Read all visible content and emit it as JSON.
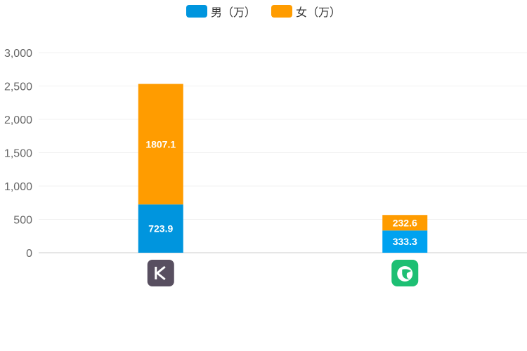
{
  "chart_data": {
    "type": "bar",
    "stacked": true,
    "categories": [
      "keep-app-icon",
      "green-fitness-app-icon"
    ],
    "series": [
      {
        "name": "男（万）",
        "color": "#0095de",
        "values": [
          723.9,
          333.3
        ]
      },
      {
        "name": "女（万）",
        "color": "#ff9c00",
        "values": [
          1807.1,
          232.6
        ]
      }
    ],
    "ylim": [
      0,
      3000
    ],
    "yticks": [
      "0",
      "500",
      "1,000",
      "1,500",
      "2,000",
      "2,500",
      "3,000"
    ],
    "grid": true,
    "legend": "top-center",
    "data_labels": [
      [
        "723.9",
        "333.3"
      ],
      [
        "1807.1",
        "232.6"
      ]
    ]
  }
}
